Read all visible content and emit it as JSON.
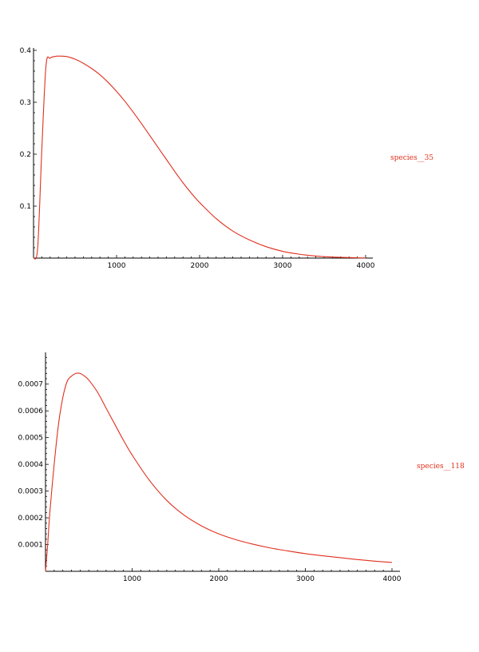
{
  "chart_data": [
    {
      "type": "line",
      "title": "",
      "xlabel": "",
      "ylabel": "",
      "xlim": [
        0,
        4000
      ],
      "ylim": [
        0,
        0.4
      ],
      "x_ticks": [
        1000,
        2000,
        3000,
        4000
      ],
      "x_tick_labels": [
        "1000",
        "2000",
        "3000",
        "4000"
      ],
      "y_ticks": [
        0.1,
        0.2,
        0.3,
        0.4
      ],
      "y_tick_labels": [
        "0.1",
        "0.2",
        "0.3",
        "0.4"
      ],
      "grid": false,
      "legend_position": "right",
      "series": [
        {
          "name": "species__35",
          "color": "#e0301e",
          "x": [
            0,
            50,
            100,
            150,
            200,
            250,
            300,
            400,
            500,
            600,
            700,
            800,
            900,
            1000,
            1100,
            1200,
            1300,
            1400,
            1500,
            1600,
            1700,
            1800,
            1900,
            2000,
            2200,
            2400,
            2600,
            2800,
            3000,
            3200,
            3400,
            3600,
            3800,
            3900,
            4000
          ],
          "y": [
            0.0,
            0.02,
            0.21,
            0.37,
            0.385,
            0.388,
            0.389,
            0.388,
            0.383,
            0.375,
            0.365,
            0.353,
            0.338,
            0.321,
            0.302,
            0.281,
            0.259,
            0.236,
            0.213,
            0.19,
            0.167,
            0.145,
            0.125,
            0.107,
            0.076,
            0.052,
            0.035,
            0.022,
            0.013,
            0.0075,
            0.004,
            0.002,
            0.001,
            0.0005,
            0.0003
          ]
        }
      ]
    },
    {
      "type": "line",
      "title": "",
      "xlabel": "",
      "ylabel": "",
      "xlim": [
        0,
        4000
      ],
      "ylim": [
        0,
        0.00075
      ],
      "x_ticks": [
        1000,
        2000,
        3000,
        4000
      ],
      "x_tick_labels": [
        "1000",
        "2000",
        "3000",
        "4000"
      ],
      "y_ticks": [
        0.0001,
        0.0002,
        0.0003,
        0.0004,
        0.0005,
        0.0006,
        0.0007
      ],
      "y_tick_labels": [
        "0.0001",
        "0.0002",
        "0.0003",
        "0.0004",
        "0.0005",
        "0.0006",
        "0.0007"
      ],
      "grid": false,
      "legend_position": "right",
      "series": [
        {
          "name": "species__118",
          "color": "#e0301e",
          "x": [
            0,
            25,
            50,
            100,
            150,
            200,
            250,
            300,
            350,
            400,
            450,
            500,
            600,
            700,
            800,
            900,
            1000,
            1200,
            1400,
            1600,
            1800,
            2000,
            2200,
            2400,
            2600,
            2800,
            3000,
            3200,
            3400,
            3600,
            3800,
            4000
          ],
          "y": [
            0.0,
            0.0001,
            0.00022,
            0.0004,
            0.00055,
            0.00065,
            0.00071,
            0.00073,
            0.00074,
            0.00074,
            0.00073,
            0.000715,
            0.00067,
            0.00061,
            0.00055,
            0.00049,
            0.000435,
            0.00034,
            0.000265,
            0.00021,
            0.00017,
            0.00014,
            0.000118,
            0.000101,
            8.7e-05,
            7.6e-05,
            6.6e-05,
            5.8e-05,
            5.1e-05,
            4.4e-05,
            3.8e-05,
            3.3e-05
          ]
        }
      ]
    }
  ]
}
